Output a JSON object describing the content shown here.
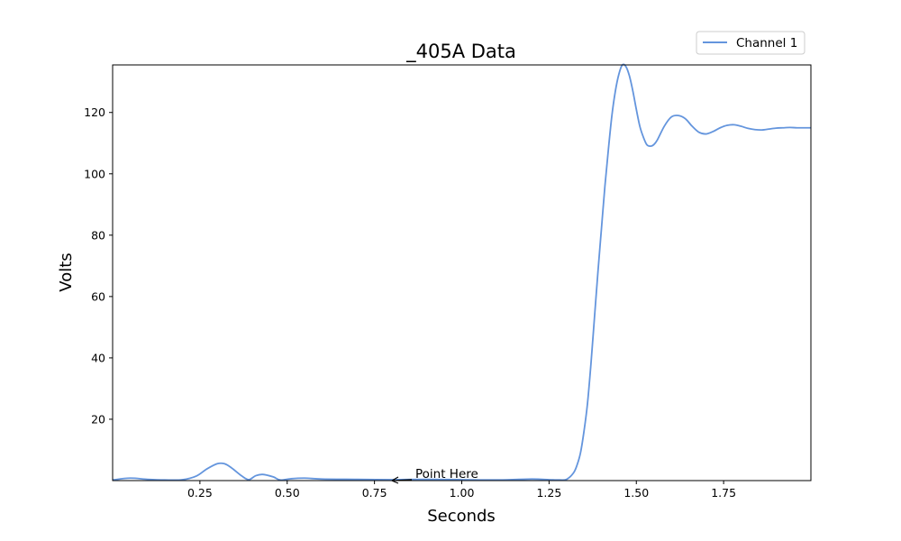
{
  "chart_data": {
    "type": "line",
    "title": "_405A Data",
    "xlabel": "Seconds",
    "ylabel": "Volts",
    "xlim": [
      0.0,
      2.0
    ],
    "ylim": [
      0,
      135.5
    ],
    "xticks": [
      0.25,
      0.5,
      0.75,
      1.0,
      1.25,
      1.5,
      1.75
    ],
    "xtick_labels": [
      "0.25",
      "0.50",
      "0.75",
      "1.00",
      "1.25",
      "1.50",
      "1.75"
    ],
    "yticks": [
      20,
      40,
      60,
      80,
      100,
      120
    ],
    "ytick_labels": [
      "20",
      "40",
      "60",
      "80",
      "100",
      "120"
    ],
    "grid": false,
    "legend_position": "top-right",
    "annotation": {
      "text": "Point Here",
      "x": 0.8,
      "y": 0.0
    },
    "series": [
      {
        "name": "Channel 1",
        "color": "#6495dd",
        "x": [
          0.0,
          0.05,
          0.1,
          0.15,
          0.2,
          0.24,
          0.27,
          0.3,
          0.32,
          0.34,
          0.37,
          0.39,
          0.41,
          0.43,
          0.46,
          0.48,
          0.51,
          0.55,
          0.6,
          0.7,
          0.8,
          0.9,
          1.0,
          1.1,
          1.2,
          1.25,
          1.28,
          1.3,
          1.32,
          1.33,
          1.34,
          1.35,
          1.36,
          1.37,
          1.38,
          1.39,
          1.4,
          1.41,
          1.42,
          1.43,
          1.44,
          1.45,
          1.46,
          1.47,
          1.48,
          1.49,
          1.5,
          1.51,
          1.52,
          1.53,
          1.54,
          1.55,
          1.56,
          1.58,
          1.6,
          1.62,
          1.64,
          1.66,
          1.68,
          1.7,
          1.72,
          1.74,
          1.76,
          1.78,
          1.8,
          1.82,
          1.84,
          1.86,
          1.88,
          1.9,
          1.92,
          1.94,
          1.96,
          1.98,
          2.0
        ],
        "y": [
          0.2,
          0.8,
          0.4,
          0.2,
          0.3,
          1.5,
          3.8,
          5.5,
          5.5,
          4.2,
          1.5,
          0.3,
          1.6,
          2.0,
          1.2,
          0.2,
          0.6,
          0.8,
          0.5,
          0.4,
          0.3,
          0.4,
          0.3,
          0.2,
          0.5,
          0.3,
          0.2,
          0.4,
          2.5,
          5.0,
          9.0,
          16.0,
          25.0,
          38.0,
          53.0,
          68.0,
          82.0,
          96.0,
          108.0,
          119.0,
          127.0,
          132.5,
          135.5,
          135.0,
          132.0,
          127.0,
          121.0,
          115.5,
          112.0,
          109.5,
          109.0,
          109.5,
          111.0,
          115.5,
          118.5,
          119.0,
          118.0,
          115.5,
          113.5,
          113.0,
          113.8,
          115.0,
          115.8,
          116.0,
          115.5,
          114.8,
          114.4,
          114.3,
          114.6,
          114.9,
          115.0,
          115.1,
          115.0,
          115.0,
          115.0
        ]
      }
    ]
  }
}
